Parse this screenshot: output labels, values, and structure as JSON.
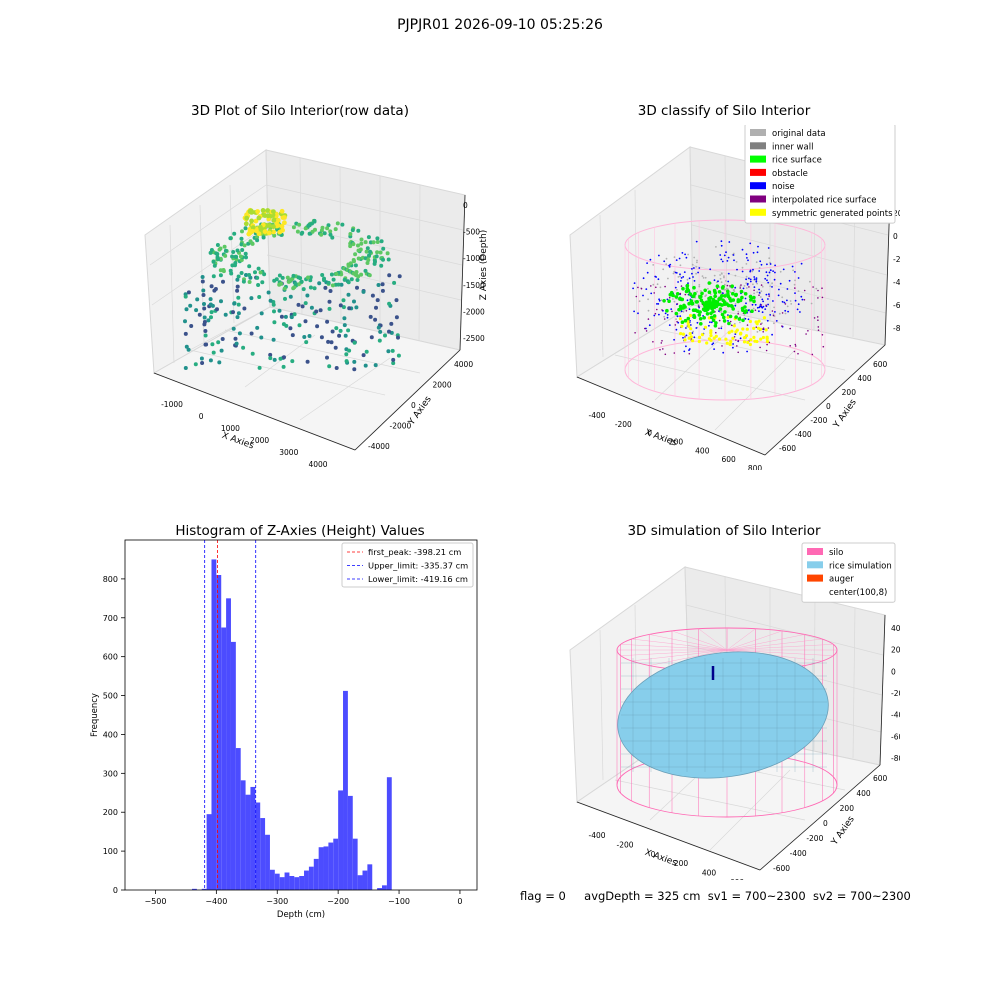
{
  "suptitle": "PJPJR01 2026-09-10 05:25:26",
  "chart_data": [
    {
      "type": "scatter",
      "title": "3D Plot of Silo Interior(row data)",
      "xlabel": "X Axies",
      "ylabel": "Y Axies",
      "zlabel": "Z Axies (Depth)",
      "x_ticks": [
        "-1000",
        "0",
        "1000",
        "2000",
        "3000",
        "4000"
      ],
      "y_ticks": [
        "-4000",
        "-2000",
        "0",
        "2000",
        "4000"
      ],
      "z_ticks": [
        "0",
        "-500",
        "-1000",
        "-1500",
        "-2000",
        "-2500"
      ],
      "colormap": "viridis"
    },
    {
      "type": "scatter",
      "title": "3D classify of Silo Interior",
      "xlabel": "X Axies",
      "ylabel": "Y Axies",
      "zlabel": "Z Axies (Depth)",
      "x_ticks": [
        "-400",
        "-200",
        "0",
        "200",
        "400",
        "600",
        "800"
      ],
      "y_ticks": [
        "-600",
        "-400",
        "-200",
        "0",
        "200",
        "400",
        "600"
      ],
      "z_ticks": [
        "200",
        "0",
        "-200",
        "-400",
        "-600",
        "-800"
      ],
      "legend_position": "top-right",
      "legend": [
        {
          "label": "original data",
          "color": "#b0b0b0"
        },
        {
          "label": "inner wall",
          "color": "#808080"
        },
        {
          "label": "rice surface",
          "color": "#00ff00"
        },
        {
          "label": "obstacle",
          "color": "#ff0000"
        },
        {
          "label": "noise",
          "color": "#0000ff"
        },
        {
          "label": "interpolated rice surface",
          "color": "#800080"
        },
        {
          "label": "symmetric generated points",
          "color": "#ffff00"
        }
      ]
    },
    {
      "type": "bar",
      "title": "Histogram of Z-Axies (Height) Values",
      "xlabel": "Depth (cm)",
      "ylabel": "Frequency",
      "xlim": [
        -550,
        28
      ],
      "ylim": [
        0,
        900
      ],
      "x_ticks": [
        -500,
        -400,
        -300,
        -200,
        -100,
        0
      ],
      "y_ticks": [
        0,
        100,
        200,
        300,
        400,
        500,
        600,
        700,
        800
      ],
      "bar_color": "#4c4cff",
      "bin_start": -440,
      "bin_width": 8,
      "values": [
        3,
        0,
        3,
        195,
        850,
        810,
        675,
        750,
        638,
        365,
        282,
        245,
        265,
        225,
        185,
        142,
        52,
        42,
        33,
        45,
        36,
        33,
        36,
        50,
        60,
        80,
        110,
        112,
        122,
        132,
        256,
        512,
        242,
        132,
        38,
        50,
        66,
        0,
        5,
        12,
        290
      ],
      "lines": [
        {
          "label": "first_peak: -398.21 cm",
          "x": -398.21,
          "color": "#ff0000"
        },
        {
          "label": "Upper_limit: -335.37 cm",
          "x": -335.37,
          "color": "#0000ff"
        },
        {
          "label": "Lower_limit: -419.16 cm",
          "x": -419.16,
          "color": "#0000ff"
        }
      ],
      "legend_position": "top-right"
    },
    {
      "type": "scatter",
      "title": "3D simulation of Silo Interior",
      "xlabel": "X Axies",
      "ylabel": "Y Axies",
      "zlabel": "Z Axies (Depth)",
      "x_ticks": [
        "-400",
        "-200",
        "0",
        "200",
        "400",
        "600"
      ],
      "y_ticks": [
        "-600",
        "-400",
        "-200",
        "0",
        "200",
        "400",
        "600"
      ],
      "z_ticks": [
        "400",
        "200",
        "0",
        "-200",
        "-400",
        "-600",
        "-800"
      ],
      "legend_position": "top-right",
      "legend": [
        {
          "label": "silo",
          "color": "#ff69b4"
        },
        {
          "label": "rice simulation",
          "color": "#87ceeb"
        },
        {
          "label": "auger",
          "color": "#ff4500"
        },
        {
          "label": "center(100,8)",
          "color": "#ffffff"
        }
      ]
    }
  ],
  "footer": {
    "flag": "flag = 0",
    "avg": "avgDepth = 325 cm",
    "sv1": "sv1 = 700~2300",
    "sv2": "sv2 = 700~2300"
  }
}
